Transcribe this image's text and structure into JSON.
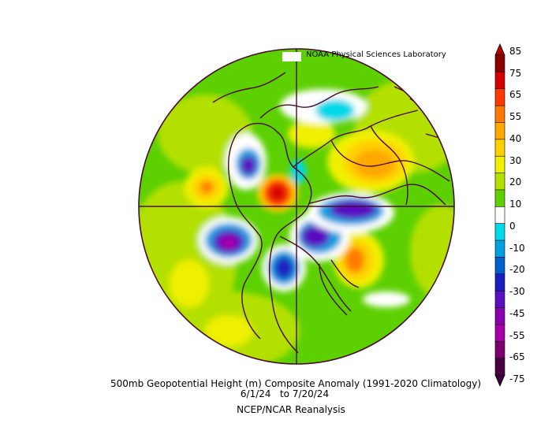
{
  "credit": "NOAA Physical Sciences Laboratory",
  "caption": {
    "line1": "500mb Geopotential Height (m) Composite Anomaly (1991-2020 Climatology)",
    "line2": "6/1/24   to 7/20/24",
    "line3": "NCEP/NCAR Reanalysis"
  },
  "colorbar": {
    "labels": [
      "85",
      "75",
      "65",
      "55",
      "40",
      "30",
      "20",
      "10",
      "0",
      "-10",
      "-20",
      "-30",
      "-45",
      "-55",
      "-65",
      "-75"
    ],
    "colors": [
      "#8b0000",
      "#d40000",
      "#ff3a00",
      "#ff7a00",
      "#ffa800",
      "#ffd000",
      "#f0f000",
      "#b4e000",
      "#5cd000",
      "#ffffff",
      "#00d8e8",
      "#00a0e0",
      "#0060d0",
      "#1a20c0",
      "#5a10c0",
      "#8a00b0",
      "#a800a8",
      "#7a0070",
      "#4a0040"
    ],
    "top_color": "#b00000",
    "bottom_color": "#3a0040"
  },
  "map": {
    "projection": "north-polar-stereographic",
    "ocean_base": "#5cd000",
    "coast_color": "#4a0a2a"
  }
}
